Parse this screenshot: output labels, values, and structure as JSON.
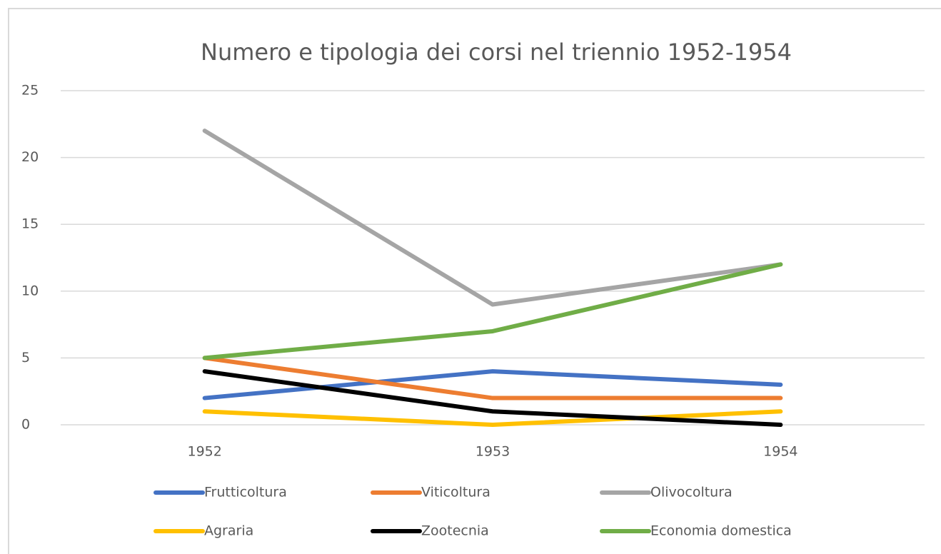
{
  "chart_data": {
    "type": "line",
    "title": "Numero e tipologia dei corsi nel triennio 1952-1954",
    "categories": [
      "1952",
      "1953",
      "1954"
    ],
    "series": [
      {
        "name": "Frutticoltura",
        "color": "#4472c4",
        "values": [
          2,
          4,
          3
        ]
      },
      {
        "name": "Viticoltura",
        "color": "#ed7d31",
        "values": [
          5,
          2,
          2
        ]
      },
      {
        "name": "Olivocoltura",
        "color": "#a5a5a5",
        "values": [
          22,
          9,
          12
        ]
      },
      {
        "name": "Agraria",
        "color": "#ffc000",
        "values": [
          1,
          0,
          1
        ]
      },
      {
        "name": "Zootecnia",
        "color": "#000000",
        "values": [
          4,
          1,
          0
        ]
      },
      {
        "name": "Economia domestica",
        "color": "#70ad47",
        "values": [
          5,
          7,
          12
        ]
      }
    ],
    "ylim": [
      0,
      25
    ],
    "yticks": [
      0,
      5,
      10,
      15,
      20,
      25
    ],
    "grid": true,
    "legend": "bottom"
  }
}
